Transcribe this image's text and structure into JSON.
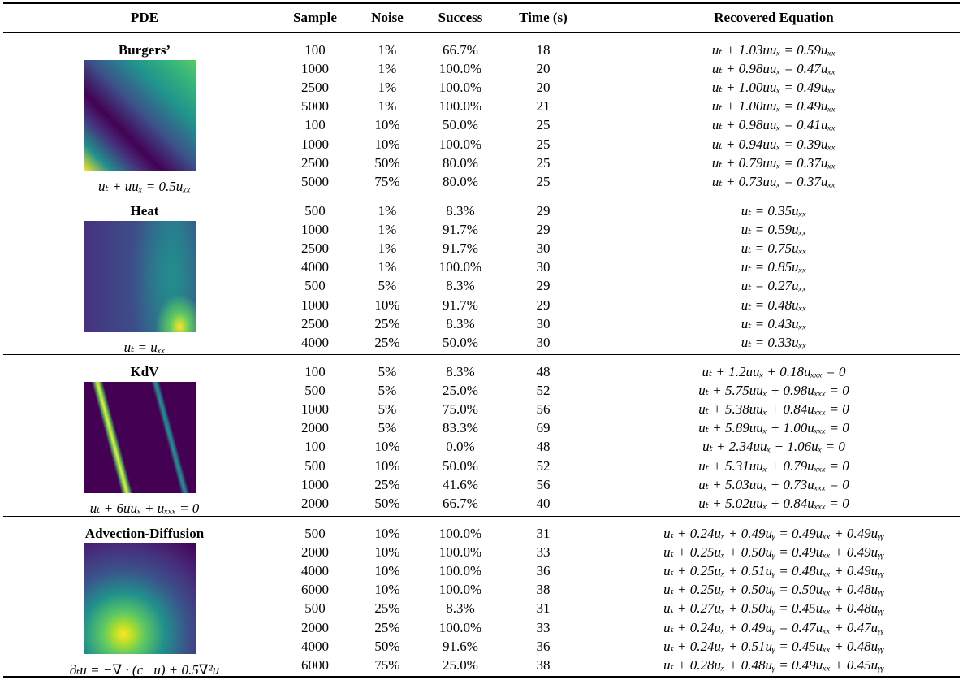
{
  "header": [
    "PDE",
    "Sample",
    "Noise",
    "Success",
    "Time (s)",
    "Recovered Equation"
  ],
  "groups": [
    {
      "name": "Burgers’",
      "equation": "uₜ + uuₓ = 0.5uₓₓ",
      "rows": [
        [
          "100",
          "1%",
          "66.7%",
          "18",
          "uₜ + 1.03uuₓ = 0.59uₓₓ"
        ],
        [
          "1000",
          "1%",
          "100.0%",
          "20",
          "uₜ + 0.98uuₓ = 0.47uₓₓ"
        ],
        [
          "2500",
          "1%",
          "100.0%",
          "20",
          "uₜ + 1.00uuₓ = 0.49uₓₓ"
        ],
        [
          "5000",
          "1%",
          "100.0%",
          "21",
          "uₜ + 1.00uuₓ = 0.49uₓₓ"
        ],
        [
          "100",
          "10%",
          "50.0%",
          "25",
          "uₜ + 0.98uuₓ = 0.41uₓₓ"
        ],
        [
          "1000",
          "10%",
          "100.0%",
          "25",
          "uₜ + 0.94uuₓ = 0.39uₓₓ"
        ],
        [
          "2500",
          "50%",
          "80.0%",
          "25",
          "uₜ + 0.79uuₓ = 0.37uₓₓ"
        ],
        [
          "5000",
          "75%",
          "80.0%",
          "25",
          "uₜ + 0.73uuₓ = 0.37uₓₓ"
        ]
      ]
    },
    {
      "name": "Heat",
      "equation": "uₜ = uₓₓ",
      "rows": [
        [
          "500",
          "1%",
          "8.3%",
          "29",
          "uₜ = 0.35uₓₓ"
        ],
        [
          "1000",
          "1%",
          "91.7%",
          "29",
          "uₜ = 0.59uₓₓ"
        ],
        [
          "2500",
          "1%",
          "91.7%",
          "30",
          "uₜ = 0.75uₓₓ"
        ],
        [
          "4000",
          "1%",
          "100.0%",
          "30",
          "uₜ = 0.85uₓₓ"
        ],
        [
          "500",
          "5%",
          "8.3%",
          "29",
          "uₜ = 0.27uₓₓ"
        ],
        [
          "1000",
          "10%",
          "91.7%",
          "29",
          "uₜ = 0.48uₓₓ"
        ],
        [
          "2500",
          "25%",
          "8.3%",
          "30",
          "uₜ = 0.43uₓₓ"
        ],
        [
          "4000",
          "25%",
          "50.0%",
          "30",
          "uₜ = 0.33uₓₓ"
        ]
      ]
    },
    {
      "name": "KdV",
      "equation": "uₜ + 6uuₓ + uₓₓₓ = 0",
      "rows": [
        [
          "100",
          "5%",
          "8.3%",
          "48",
          "uₜ + 1.2uuₓ + 0.18uₓₓₓ = 0"
        ],
        [
          "500",
          "5%",
          "25.0%",
          "52",
          "uₜ + 5.75uuₓ + 0.98uₓₓₓ = 0"
        ],
        [
          "1000",
          "5%",
          "75.0%",
          "56",
          "uₜ + 5.38uuₓ + 0.84uₓₓₓ = 0"
        ],
        [
          "2000",
          "5%",
          "83.3%",
          "69",
          "uₜ + 5.89uuₓ + 1.00uₓₓₓ = 0"
        ],
        [
          "100",
          "10%",
          "0.0%",
          "48",
          "uₜ + 2.34uuₓ + 1.06uₓ = 0"
        ],
        [
          "500",
          "10%",
          "50.0%",
          "52",
          "uₜ + 5.31uuₓ + 0.79uₓₓₓ = 0"
        ],
        [
          "1000",
          "25%",
          "41.6%",
          "56",
          "uₜ + 5.03uuₓ + 0.73uₓₓₓ = 0"
        ],
        [
          "2000",
          "50%",
          "66.7%",
          "40",
          "uₜ + 5.02uuₓ + 0.84uₓₓₓ = 0"
        ]
      ]
    },
    {
      "name": "Advection-Diffusion",
      "equation": "∂ₜu = −∇ · (c⃗u) + 0.5∇²u",
      "rows": [
        [
          "500",
          "10%",
          "100.0%",
          "31",
          "uₜ + 0.24uₓ + 0.49uᵧ = 0.49uₓₓ + 0.49uᵧᵧ"
        ],
        [
          "2000",
          "10%",
          "100.0%",
          "33",
          "uₜ + 0.25uₓ + 0.50uᵧ = 0.49uₓₓ + 0.49uᵧᵧ"
        ],
        [
          "4000",
          "10%",
          "100.0%",
          "36",
          "uₜ + 0.25uₓ + 0.51uᵧ = 0.48uₓₓ + 0.49uᵧᵧ"
        ],
        [
          "6000",
          "10%",
          "100.0%",
          "38",
          "uₜ + 0.25uₓ + 0.50uᵧ = 0.50uₓₓ + 0.48uᵧᵧ"
        ],
        [
          "500",
          "25%",
          "8.3%",
          "31",
          "uₜ + 0.27uₓ + 0.50uᵧ = 0.45uₓₓ + 0.48uᵧᵧ"
        ],
        [
          "2000",
          "25%",
          "100.0%",
          "33",
          "uₜ + 0.24uₓ + 0.49uᵧ = 0.47uₓₓ + 0.47uᵧᵧ"
        ],
        [
          "4000",
          "50%",
          "91.6%",
          "36",
          "uₜ + 0.24uₓ + 0.51uᵧ = 0.45uₓₓ + 0.48uᵧᵧ"
        ],
        [
          "6000",
          "75%",
          "25.0%",
          "38",
          "uₜ + 0.28uₓ + 0.48uᵧ = 0.49uₓₓ + 0.45uᵧᵧ"
        ]
      ]
    }
  ]
}
